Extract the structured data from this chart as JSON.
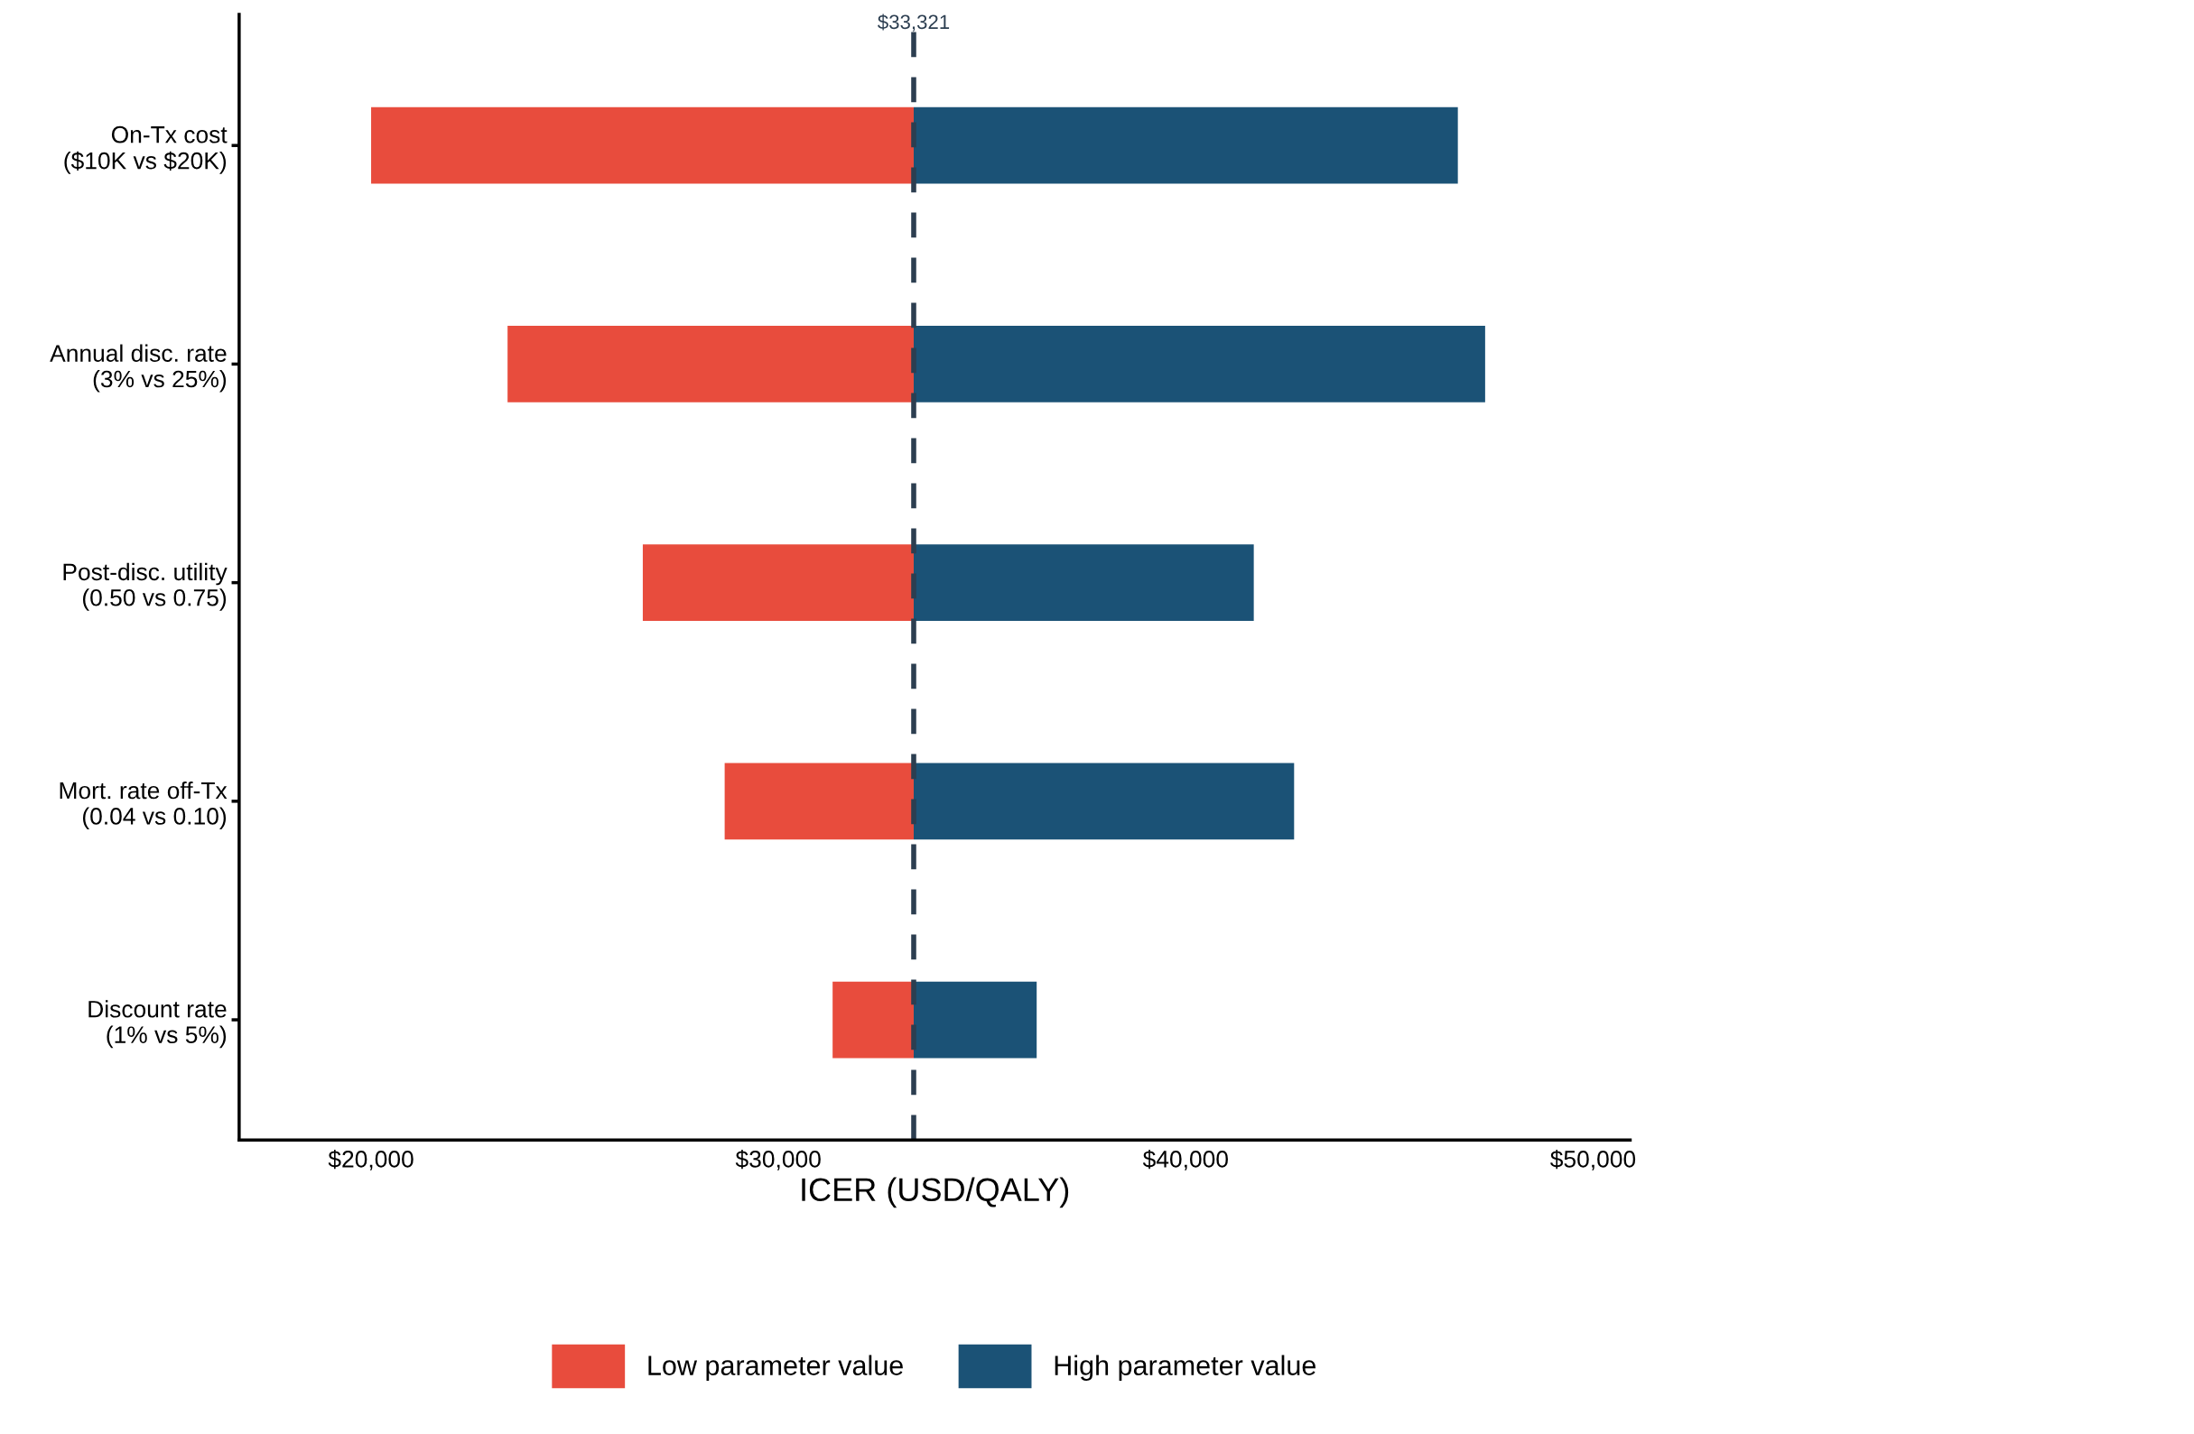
{
  "chart_data": {
    "type": "bar",
    "orientation": "horizontal",
    "xlabel": "ICER (USD/QALY)",
    "categories": [
      "On-Tx cost\n($10K vs $20K)",
      "Annual disc. rate\n(3% vs 25%)",
      "Post-disc. utility\n(0.50 vs 0.75)",
      "Mort. rate off-Tx\n(0.04 vs 0.10)",
      "Discount rate\n(1% vs 5%)"
    ],
    "series": [
      {
        "name": "Low parameter value",
        "color": "#e84c3d",
        "base": [
          33321,
          33321,
          33321,
          33321,
          33321
        ],
        "values": [
          -13321,
          -9971,
          -6651,
          -4641,
          -1991
        ]
      },
      {
        "name": "High parameter value",
        "color": "#1b5276",
        "base": [
          33321,
          33321,
          33321,
          33321,
          33321
        ],
        "values": [
          13359,
          14029,
          8349,
          9339,
          3019
        ]
      }
    ],
    "xlim": [
      16760,
      50910
    ],
    "xticks": [
      {
        "value": 20000,
        "label": "$20,000"
      },
      {
        "value": 30000,
        "label": "$30,000"
      },
      {
        "value": 40000,
        "label": "$40,000"
      },
      {
        "value": 50000,
        "label": "$50,000"
      }
    ],
    "ref_lines": [
      {
        "axis": "x",
        "value": 33321,
        "label": "$33,321",
        "color": "#2c3e50",
        "line_style": "dashed"
      }
    ],
    "grid": false,
    "legend": "bottom"
  }
}
